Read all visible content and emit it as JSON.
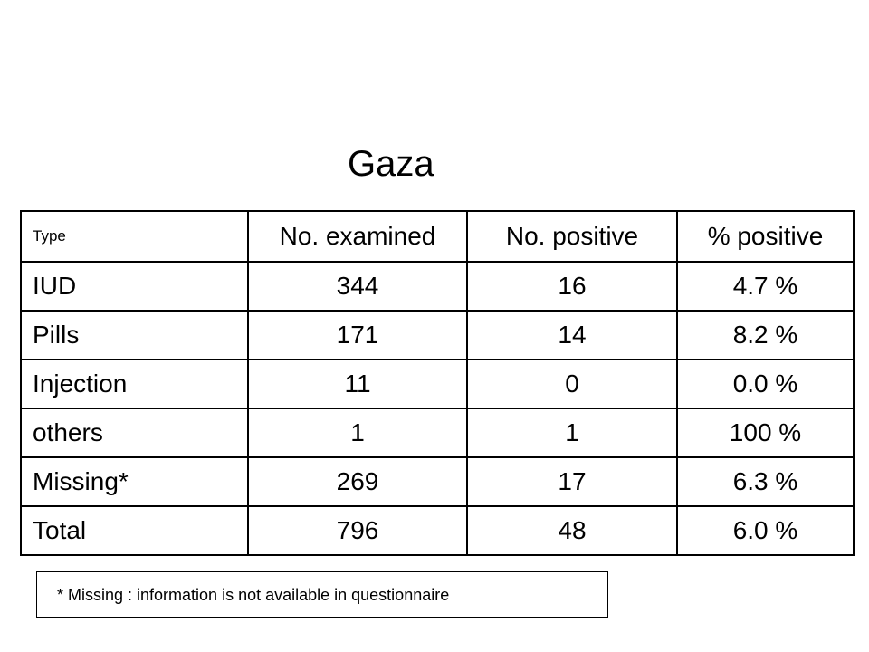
{
  "title": "Gaza",
  "table": {
    "headers": [
      "Type",
      "No. examined",
      "No. positive",
      "% positive"
    ],
    "rows": [
      [
        "IUD",
        "344",
        "16",
        "4.7 %"
      ],
      [
        "Pills",
        "171",
        "14",
        "8.2 %"
      ],
      [
        "Injection",
        "11",
        "0",
        "0.0 %"
      ],
      [
        "others",
        "1",
        "1",
        "100 %"
      ],
      [
        "Missing*",
        "269",
        "17",
        "6.3 %"
      ],
      [
        "Total",
        "796",
        "48",
        "6.0 %"
      ]
    ]
  },
  "footnote": "* Missing : information is not available in questionnaire"
}
